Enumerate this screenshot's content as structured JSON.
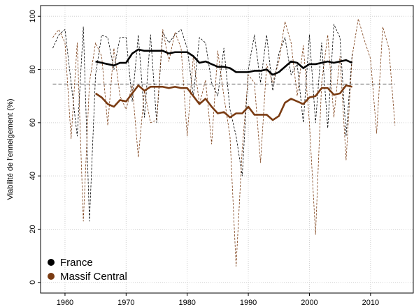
{
  "chart_data": {
    "type": "line",
    "y_label": "Viabilité de l'enneigement (%)",
    "x": [
      1958,
      1959,
      1960,
      1961,
      1962,
      1963,
      1964,
      1965,
      1966,
      1967,
      1968,
      1969,
      1970,
      1971,
      1972,
      1973,
      1974,
      1975,
      1976,
      1977,
      1978,
      1979,
      1980,
      1981,
      1982,
      1983,
      1984,
      1985,
      1986,
      1987,
      1988,
      1989,
      1990,
      1991,
      1992,
      1993,
      1994,
      1995,
      1996,
      1997,
      1998,
      1999,
      2000,
      2001,
      2002,
      2003,
      2004,
      2005,
      2006,
      2007,
      2008,
      2009,
      2010,
      2011,
      2012,
      2013,
      2014
    ],
    "series": [
      {
        "name": "France",
        "color": "#000000",
        "values": [
          88,
          93,
          95,
          75,
          55,
          96,
          23,
          78,
          93,
          92,
          80,
          92,
          92,
          68,
          93,
          62,
          93,
          60,
          94,
          90,
          93,
          95,
          88,
          70,
          92,
          90,
          75,
          70,
          88,
          65,
          55,
          40,
          80,
          93,
          75,
          93,
          72,
          86,
          92,
          78,
          82,
          60,
          93,
          60,
          90,
          58,
          97,
          92,
          55,
          86,
          null,
          null,
          null,
          null,
          null,
          null,
          null
        ],
        "smoothed": [
          null,
          null,
          null,
          null,
          null,
          null,
          null,
          83,
          82.5,
          82,
          81.5,
          82.5,
          82.5,
          86,
          87.5,
          87,
          87,
          87,
          87,
          86,
          86.5,
          86.5,
          86.5,
          85,
          82.5,
          83,
          82,
          81,
          81,
          80.5,
          79,
          79,
          79,
          79.5,
          79.5,
          80,
          78,
          79,
          81,
          83,
          82.5,
          80.5,
          82,
          82,
          82.5,
          83,
          82.5,
          83,
          83.5,
          82.5,
          null,
          null,
          null,
          null,
          null,
          null,
          null
        ]
      },
      {
        "name": "Massif Central",
        "color": "#7a3b12",
        "values": [
          92,
          95,
          90,
          54,
          90,
          23,
          75,
          90,
          85,
          59,
          88,
          70,
          65,
          74,
          47,
          72,
          60,
          61,
          95,
          83,
          94,
          88,
          55,
          85,
          67,
          76,
          52,
          87,
          70,
          55,
          6,
          50,
          78,
          75,
          45,
          82,
          75,
          83,
          98,
          90,
          70,
          89,
          60,
          18,
          75,
          93,
          62,
          85,
          46,
          85,
          99,
          91,
          84,
          56,
          96,
          88,
          59
        ],
        "smoothed": [
          null,
          null,
          null,
          null,
          null,
          null,
          null,
          71,
          69.5,
          67,
          66,
          68.5,
          68,
          71,
          74,
          72,
          73.5,
          73.5,
          73.5,
          73,
          73.5,
          73,
          73,
          70,
          67,
          69,
          66,
          63.5,
          64,
          62,
          63.5,
          63.5,
          66,
          63,
          63,
          63,
          61,
          62.5,
          67.5,
          69,
          68,
          67,
          69.5,
          70,
          73,
          73,
          70.5,
          71,
          74,
          73.5,
          null,
          null,
          null,
          null,
          null,
          null,
          null
        ]
      }
    ],
    "hline": 74.5,
    "xlim": [
      1956,
      2017
    ],
    "ylim": [
      -4,
      104
    ],
    "xticks": [
      1960,
      1970,
      1980,
      1990,
      2000,
      2010
    ],
    "yticks": [
      0,
      20,
      40,
      60,
      80,
      100
    ],
    "grid": true,
    "legend": "bottom-left"
  }
}
